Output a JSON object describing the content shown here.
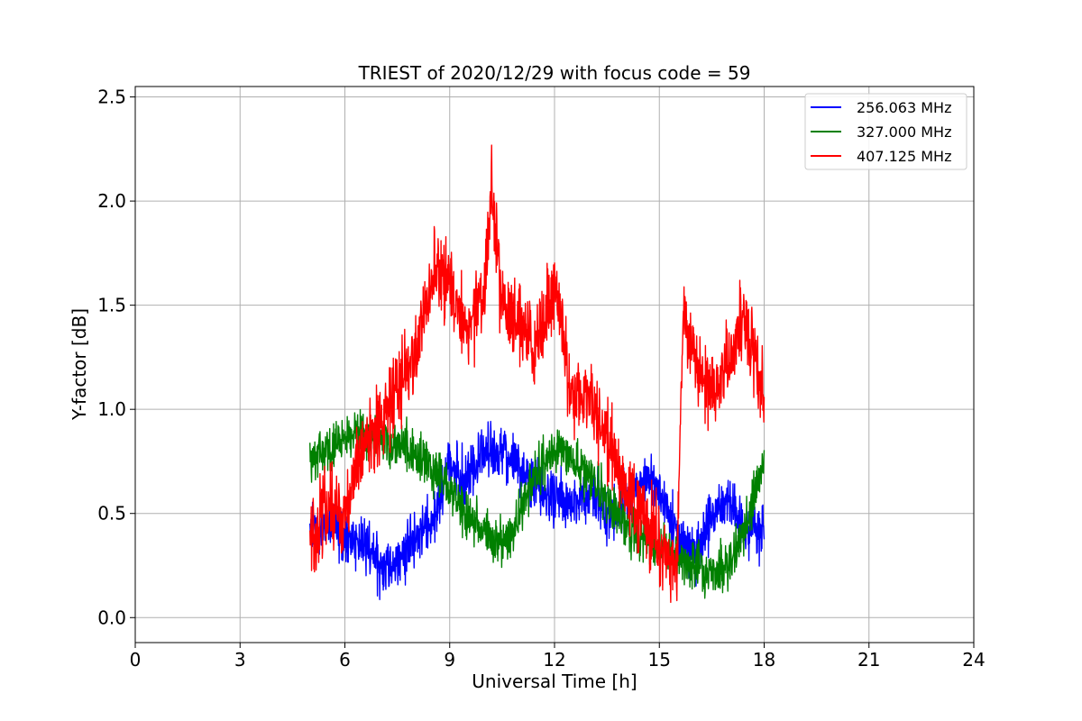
{
  "chart_data": {
    "type": "line",
    "title": "TRIEST of 2020/12/29 with focus code = 59",
    "xlabel": "Universal Time [h]",
    "ylabel": "Y-factor [dB]",
    "xlim": [
      0,
      24
    ],
    "ylim": [
      -0.12,
      2.55
    ],
    "xticks": [
      0,
      3,
      6,
      9,
      12,
      15,
      18,
      21,
      24
    ],
    "xtick_labels": [
      "0",
      "3",
      "6",
      "9",
      "12",
      "15",
      "18",
      "21",
      "24"
    ],
    "yticks": [
      0.0,
      0.5,
      1.0,
      1.5,
      2.0,
      2.5
    ],
    "ytick_labels": [
      "0.0",
      "0.5",
      "1.0",
      "1.5",
      "2.0",
      "2.5"
    ],
    "grid": true,
    "legend_position": "top-right",
    "series": [
      {
        "name": "256.063 MHz",
        "color": "#0000ff",
        "noise": 0.08,
        "x": [
          5.0,
          5.5,
          6.0,
          6.5,
          7.0,
          7.5,
          8.0,
          8.5,
          9.0,
          9.5,
          10.0,
          10.5,
          11.0,
          11.5,
          12.0,
          12.5,
          13.0,
          13.5,
          14.0,
          14.5,
          15.0,
          15.5,
          16.0,
          16.5,
          17.0,
          17.5,
          18.0
        ],
        "y": [
          0.42,
          0.45,
          0.4,
          0.35,
          0.25,
          0.27,
          0.38,
          0.45,
          0.75,
          0.65,
          0.8,
          0.78,
          0.72,
          0.62,
          0.6,
          0.55,
          0.6,
          0.48,
          0.55,
          0.68,
          0.62,
          0.4,
          0.28,
          0.5,
          0.55,
          0.4,
          0.42
        ]
      },
      {
        "name": "327.000 MHz",
        "color": "#008000",
        "noise": 0.07,
        "x": [
          5.0,
          5.5,
          6.0,
          6.5,
          7.0,
          7.5,
          8.0,
          8.5,
          9.0,
          9.5,
          10.0,
          10.5,
          11.0,
          11.5,
          12.0,
          12.5,
          13.0,
          13.5,
          14.0,
          14.5,
          15.0,
          15.5,
          16.0,
          16.5,
          17.0,
          17.5,
          18.0
        ],
        "y": [
          0.75,
          0.82,
          0.85,
          0.88,
          0.84,
          0.82,
          0.8,
          0.72,
          0.6,
          0.5,
          0.4,
          0.35,
          0.5,
          0.7,
          0.8,
          0.75,
          0.7,
          0.55,
          0.45,
          0.4,
          0.35,
          0.3,
          0.25,
          0.2,
          0.25,
          0.45,
          0.75
        ]
      },
      {
        "name": "407.125 MHz",
        "color": "#ff0000",
        "noise": 0.12,
        "x": [
          5.0,
          5.5,
          6.0,
          6.5,
          7.0,
          7.5,
          8.0,
          8.5,
          9.0,
          9.5,
          10.0,
          10.2,
          10.5,
          11.0,
          11.5,
          12.0,
          12.5,
          13.0,
          13.5,
          14.0,
          14.5,
          15.0,
          15.5,
          15.7,
          16.0,
          16.5,
          17.0,
          17.5,
          18.0
        ],
        "y": [
          0.35,
          0.55,
          0.5,
          0.8,
          0.9,
          1.1,
          1.25,
          1.65,
          1.6,
          1.4,
          1.55,
          2.1,
          1.5,
          1.4,
          1.3,
          1.6,
          1.05,
          1.05,
          0.9,
          0.6,
          0.5,
          0.35,
          0.25,
          1.5,
          1.25,
          1.05,
          1.25,
          1.45,
          1.0
        ]
      }
    ]
  }
}
